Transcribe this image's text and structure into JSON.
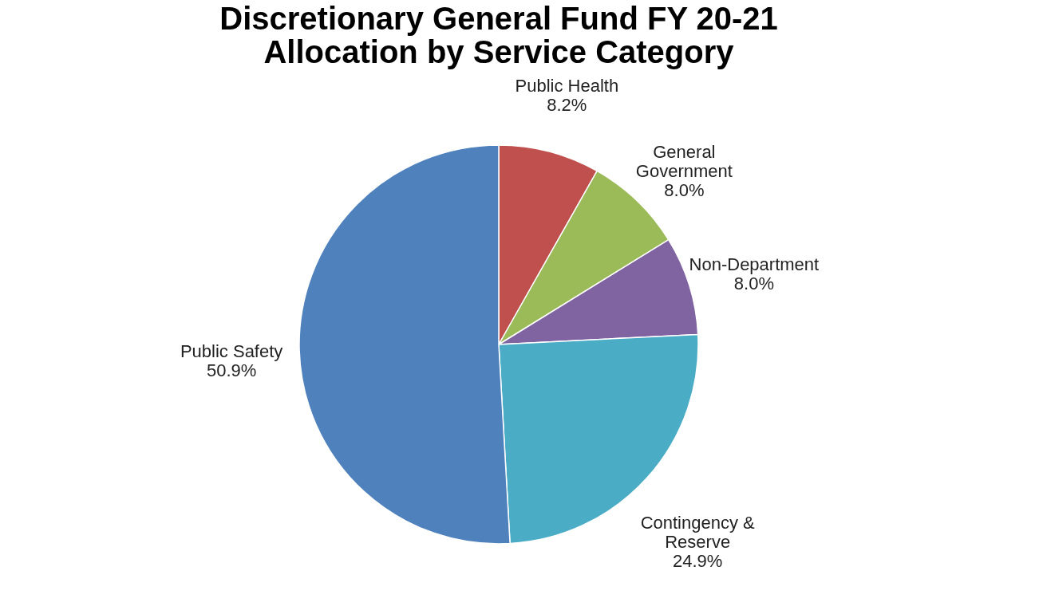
{
  "chart_data": {
    "type": "pie",
    "title": [
      "Discretionary General Fund FY 20-21",
      "Allocation by Service Category"
    ],
    "categories": [
      "Public Health",
      "General Government",
      "Non-Department",
      "Contingency & Reserve",
      "Public Safety"
    ],
    "values": [
      8.2,
      8.0,
      8.0,
      24.9,
      50.9
    ],
    "value_labels": [
      "8.2%",
      "8.0%",
      "8.0%",
      "24.9%",
      "50.9%"
    ],
    "colors": [
      "#c0504d",
      "#9bbb59",
      "#8064a2",
      "#4bacc6",
      "#4f81bd"
    ],
    "legend": false
  }
}
